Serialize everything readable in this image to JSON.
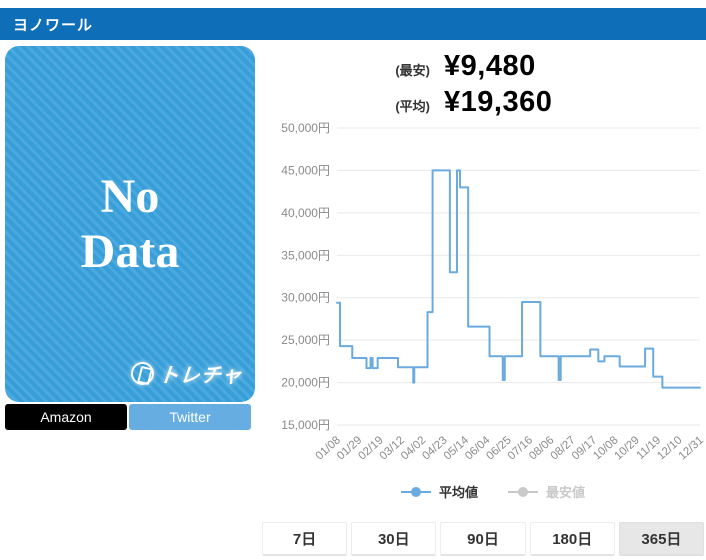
{
  "header": {
    "title": "ヨノワール",
    "bg_color": "#0e6eb8"
  },
  "card": {
    "line1": "No",
    "line2": "Data",
    "brand": "トレチャ",
    "bg_color": "#39a1dc"
  },
  "links": {
    "amazon_label": "Amazon",
    "twitter_label": "Twitter",
    "amazon_color": "#000000",
    "twitter_color": "#66ade2"
  },
  "stats": {
    "lowest_label": "(最安)",
    "lowest_value": "¥9,480",
    "average_label": "(平均)",
    "average_value": "¥19,360"
  },
  "chart_data": {
    "type": "line",
    "step": "after",
    "grid": true,
    "legend_position": "bottom",
    "ylim": [
      15000,
      50000
    ],
    "y_tick_values": [
      50000,
      45000,
      40000,
      35000,
      30000,
      25000,
      20000,
      15000
    ],
    "y_tick_labels": [
      "50,000円",
      "45,000円",
      "40,000円",
      "35,000円",
      "30,000円",
      "25,000円",
      "20,000円",
      "15,000円"
    ],
    "x_tick_labels": [
      "01/08",
      "01/29",
      "02/19",
      "03/12",
      "04/02",
      "04/23",
      "05/14",
      "06/04",
      "06/25",
      "07/16",
      "08/06",
      "08/27",
      "09/17",
      "10/08",
      "10/29",
      "11/19",
      "12/10",
      "12/31"
    ],
    "x_tick_interval_days": 21,
    "x_total_days": 357,
    "series": [
      {
        "name": "平均値",
        "color": "#6aaade",
        "visible": true,
        "points_day_value": [
          [
            0,
            29400
          ],
          [
            3,
            24300
          ],
          [
            15,
            22900
          ],
          [
            29,
            21700
          ],
          [
            33,
            22900
          ],
          [
            35,
            21700
          ],
          [
            40,
            22900
          ],
          [
            60,
            21800
          ],
          [
            75,
            20000
          ],
          [
            76,
            21800
          ],
          [
            89,
            28300
          ],
          [
            94,
            45000
          ],
          [
            111,
            33000
          ],
          [
            118,
            45000
          ],
          [
            121,
            43000
          ],
          [
            129,
            26600
          ],
          [
            150,
            23100
          ],
          [
            163,
            20300
          ],
          [
            165,
            23100
          ],
          [
            182,
            29500
          ],
          [
            200,
            23100
          ],
          [
            218,
            20300
          ],
          [
            220,
            23100
          ],
          [
            249,
            23900
          ],
          [
            257,
            22500
          ],
          [
            263,
            23100
          ],
          [
            278,
            21900
          ],
          [
            303,
            24000
          ],
          [
            311,
            20700
          ],
          [
            320,
            19400
          ],
          [
            357,
            19400
          ]
        ]
      },
      {
        "name": "最安値",
        "color": "#c9c9c9",
        "visible": false,
        "points_day_value": []
      }
    ]
  },
  "legend": {
    "average": "平均値",
    "lowest": "最安値"
  },
  "periods": {
    "items": [
      {
        "label": "7日",
        "active": false
      },
      {
        "label": "30日",
        "active": false
      },
      {
        "label": "90日",
        "active": false
      },
      {
        "label": "180日",
        "active": false
      },
      {
        "label": "365日",
        "active": true
      }
    ]
  }
}
